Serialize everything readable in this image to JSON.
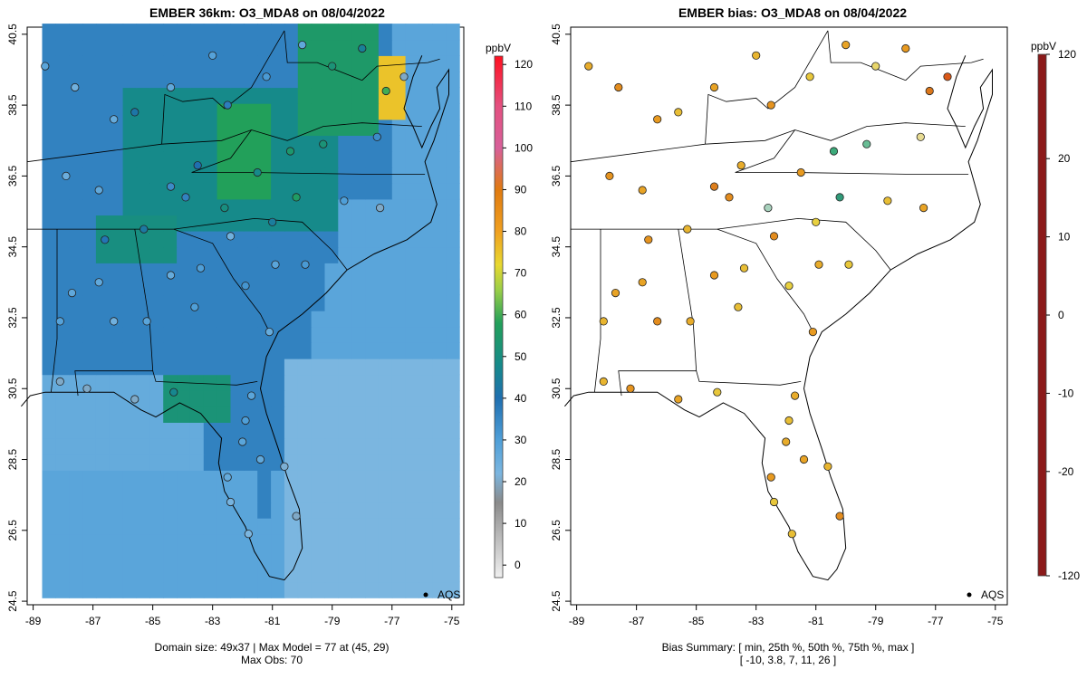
{
  "panels": {
    "left": {
      "title": "EMBER 36km: O3_MDA8 on 08/04/2022",
      "footer_line1": "Domain size: 49x37 | Max Model = 77 at (45, 29)",
      "footer_line2": "Max Obs: 70",
      "legend_label": "AQS",
      "colorbar": {
        "unit": "ppbV",
        "ticks": [
          "120",
          "110",
          "100",
          "90",
          "80",
          "70",
          "60",
          "50",
          "40",
          "30",
          "20",
          "10",
          "0"
        ],
        "tick_values": [
          120,
          110,
          100,
          90,
          80,
          70,
          60,
          50,
          40,
          30,
          20,
          10,
          0
        ],
        "range": [
          -3,
          122
        ],
        "stops": [
          {
            "v": -3,
            "c": "#f0f0f0"
          },
          {
            "v": 10,
            "c": "#a8a8a8"
          },
          {
            "v": 15,
            "c": "#8a8a8a"
          },
          {
            "v": 22,
            "c": "#7bb6e0"
          },
          {
            "v": 30,
            "c": "#4f9fd8"
          },
          {
            "v": 40,
            "c": "#1f6fb0"
          },
          {
            "v": 48,
            "c": "#168a8a"
          },
          {
            "v": 58,
            "c": "#22a05a"
          },
          {
            "v": 66,
            "c": "#9bcf48"
          },
          {
            "v": 72,
            "c": "#e8d830"
          },
          {
            "v": 80,
            "c": "#f0a020"
          },
          {
            "v": 90,
            "c": "#e07a10"
          },
          {
            "v": 100,
            "c": "#d8609a"
          },
          {
            "v": 110,
            "c": "#e45080"
          },
          {
            "v": 122,
            "c": "#ff1020"
          }
        ]
      }
    },
    "right": {
      "title": "EMBER bias: O3_MDA8 on 08/04/2022",
      "footer_line1": "Bias Summary: [ min, 25th %, 50th %, 75th %, max ]",
      "footer_line2": "[ -10,   3.8,   7,   11,   26 ]",
      "legend_label": "AQS",
      "colorbar": {
        "unit": "ppbV",
        "ticks": [
          "120",
          "20",
          "10",
          "0",
          "-10",
          "-20",
          "-120"
        ],
        "tick_values": [
          120,
          20,
          10,
          0,
          -10,
          -20,
          -120
        ],
        "positions": [
          0,
          0.2,
          0.35,
          0.5,
          0.65,
          0.8,
          1
        ],
        "stops": [
          {
            "p": 0,
            "c": "#8b1a1a"
          },
          {
            "p": 0.14,
            "c": "#e01010"
          },
          {
            "p": 0.26,
            "c": "#d8701a"
          },
          {
            "p": 0.35,
            "c": "#e89a20"
          },
          {
            "p": 0.44,
            "c": "#e8d040"
          },
          {
            "p": 0.5,
            "c": "#e6e6e6"
          },
          {
            "p": 0.58,
            "c": "#40b07a"
          },
          {
            "p": 0.68,
            "c": "#1a7878"
          },
          {
            "p": 0.78,
            "c": "#1050b0"
          },
          {
            "p": 0.86,
            "c": "#1a40e0"
          },
          {
            "p": 1,
            "c": "#6a2ab0"
          }
        ]
      }
    }
  },
  "map_axes": {
    "lon_ticks": [
      "-89",
      "-87",
      "-85",
      "-83",
      "-81",
      "-79",
      "-77",
      "-75"
    ],
    "lon_values": [
      -89,
      -87,
      -85,
      -83,
      -81,
      -79,
      -77,
      -75
    ],
    "lat_ticks": [
      "40.5",
      "38.5",
      "36.5",
      "34.5",
      "32.5",
      "30.5",
      "28.5",
      "26.5",
      "24.5"
    ],
    "lat_values": [
      40.5,
      38.5,
      36.5,
      34.5,
      32.5,
      30.5,
      28.5,
      26.5,
      24.5
    ],
    "lon_range": [
      -89.2,
      -74.6
    ],
    "lat_range": [
      24.4,
      40.7
    ]
  },
  "colors": {
    "ocean": "#4f9fd8",
    "water_gray": "#7aa6c9",
    "outline": "#000000"
  }
}
